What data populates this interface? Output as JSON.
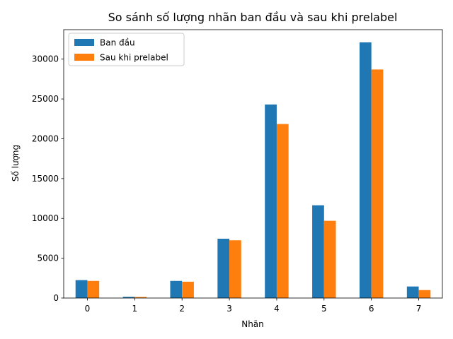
{
  "chart_data": {
    "type": "bar",
    "title": "So sánh số lượng nhãn ban đầu và sau khi prelabel",
    "xlabel": "Nhãn",
    "ylabel": "Số lượng",
    "categories": [
      "0",
      "1",
      "2",
      "3",
      "4",
      "5",
      "6",
      "7"
    ],
    "series": [
      {
        "name": "Ban đầu",
        "color": "#1f77b4",
        "values": [
          2250,
          150,
          2150,
          7450,
          24300,
          11650,
          32100,
          1450
        ]
      },
      {
        "name": "Sau khi prelabel",
        "color": "#ff7f0e",
        "values": [
          2150,
          130,
          2050,
          7250,
          21850,
          9700,
          28700,
          1000
        ]
      }
    ],
    "ylim": [
      0,
      33700
    ],
    "yticks": [
      0,
      5000,
      10000,
      15000,
      20000,
      25000,
      30000
    ],
    "ytick_labels": [
      "0",
      "5000",
      "10000",
      "15000",
      "20000",
      "25000",
      "30000"
    ],
    "grid": false,
    "legend_position": "top-left"
  }
}
